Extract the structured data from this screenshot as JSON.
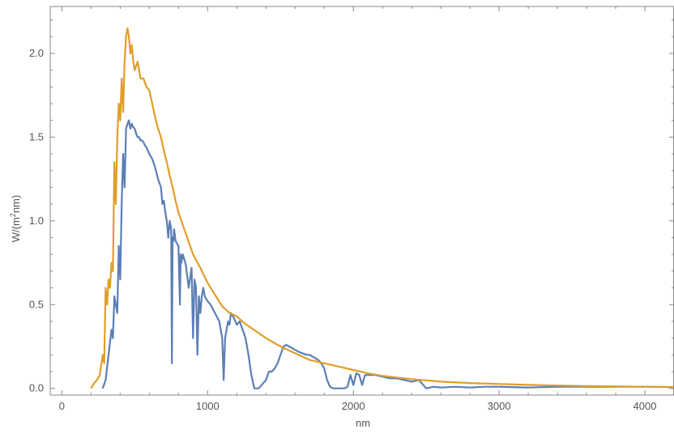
{
  "chart_data": {
    "type": "line",
    "title": "",
    "xlabel": "nm",
    "ylabel_main": "W/(m",
    "ylabel_sup": "2",
    "ylabel_tail": "nm)",
    "xlim": [
      -80,
      4200
    ],
    "ylim": [
      -0.04,
      2.28
    ],
    "x_ticks": [
      0,
      1000,
      2000,
      3000,
      4000
    ],
    "x_tick_labels": [
      "0",
      "1000",
      "2000",
      "3000",
      "4000"
    ],
    "y_ticks": [
      0.0,
      0.5,
      1.0,
      1.5,
      2.0
    ],
    "y_tick_labels": [
      "0.0",
      "0.5",
      "1.0",
      "1.5",
      "2.0"
    ],
    "grid": false,
    "series": [
      {
        "color": "#5b7fb5",
        "x": [
          280,
          300,
          320,
          340,
          350,
          360,
          370,
          380,
          390,
          400,
          410,
          420,
          430,
          440,
          450,
          460,
          470,
          480,
          490,
          500,
          510,
          520,
          530,
          540,
          550,
          560,
          570,
          580,
          590,
          600,
          620,
          640,
          660,
          680,
          690,
          700,
          710,
          720,
          730,
          740,
          750,
          755,
          760,
          765,
          770,
          780,
          800,
          810,
          815,
          820,
          830,
          850,
          870,
          890,
          900,
          910,
          920,
          930,
          940,
          950,
          960,
          970,
          980,
          1000,
          1020,
          1050,
          1080,
          1100,
          1110,
          1120,
          1130,
          1140,
          1150,
          1160,
          1180,
          1200,
          1220,
          1240,
          1260,
          1280,
          1300,
          1320,
          1340,
          1350,
          1360,
          1380,
          1400,
          1420,
          1440,
          1460,
          1480,
          1500,
          1520,
          1540,
          1560,
          1580,
          1600,
          1620,
          1650,
          1680,
          1700,
          1720,
          1740,
          1760,
          1780,
          1800,
          1820,
          1840,
          1860,
          1880,
          1900,
          1920,
          1940,
          1960,
          1980,
          2000,
          2020,
          2040,
          2060,
          2080,
          2100,
          2150,
          2200,
          2250,
          2300,
          2350,
          2400,
          2450,
          2480,
          2500,
          2550,
          2600,
          2700,
          2800,
          2900,
          3000,
          3200,
          3400,
          3600,
          3800,
          4000,
          4200
        ],
        "y": [
          0.0,
          0.05,
          0.2,
          0.35,
          0.3,
          0.55,
          0.5,
          0.45,
          0.85,
          0.65,
          1.1,
          1.4,
          1.2,
          1.55,
          1.58,
          1.6,
          1.55,
          1.58,
          1.56,
          1.55,
          1.52,
          1.5,
          1.5,
          1.48,
          1.48,
          1.47,
          1.45,
          1.44,
          1.42,
          1.4,
          1.37,
          1.32,
          1.25,
          1.2,
          1.1,
          1.12,
          1.05,
          1.0,
          0.9,
          1.0,
          0.95,
          0.15,
          0.9,
          0.88,
          0.95,
          0.88,
          0.85,
          0.5,
          0.8,
          0.75,
          0.8,
          0.74,
          0.6,
          0.72,
          0.3,
          0.65,
          0.6,
          0.2,
          0.55,
          0.45,
          0.55,
          0.6,
          0.55,
          0.52,
          0.5,
          0.45,
          0.4,
          0.3,
          0.05,
          0.3,
          0.35,
          0.4,
          0.38,
          0.45,
          0.42,
          0.38,
          0.4,
          0.35,
          0.3,
          0.2,
          0.08,
          0.0,
          0.0,
          0.0,
          0.01,
          0.03,
          0.05,
          0.1,
          0.1,
          0.12,
          0.15,
          0.2,
          0.25,
          0.26,
          0.25,
          0.24,
          0.23,
          0.22,
          0.21,
          0.2,
          0.2,
          0.19,
          0.18,
          0.17,
          0.15,
          0.12,
          0.05,
          0.01,
          0.0,
          0.0,
          0.0,
          0.0,
          0.0,
          0.01,
          0.08,
          0.02,
          0.09,
          0.08,
          0.02,
          0.08,
          0.08,
          0.08,
          0.07,
          0.06,
          0.06,
          0.05,
          0.04,
          0.05,
          0.02,
          0.0,
          0.01,
          0.005,
          0.01,
          0.005,
          0.01,
          0.01,
          0.005,
          0.01,
          0.01,
          0.01,
          0.01,
          0.008
        ]
      },
      {
        "color": "#e09e2a",
        "x": [
          200,
          220,
          240,
          260,
          280,
          290,
          300,
          310,
          320,
          330,
          340,
          350,
          360,
          370,
          380,
          390,
          400,
          410,
          420,
          430,
          440,
          450,
          460,
          470,
          480,
          490,
          500,
          520,
          540,
          560,
          580,
          600,
          620,
          640,
          660,
          680,
          700,
          720,
          740,
          760,
          780,
          800,
          820,
          840,
          860,
          880,
          900,
          950,
          1000,
          1050,
          1100,
          1150,
          1200,
          1250,
          1300,
          1350,
          1400,
          1500,
          1600,
          1700,
          1800,
          1900,
          2000,
          2100,
          2200,
          2300,
          2400,
          2500,
          2600,
          2800,
          3000,
          3200,
          3400,
          3600,
          3800,
          4000,
          4200
        ],
        "y": [
          0.0,
          0.03,
          0.05,
          0.08,
          0.2,
          0.15,
          0.6,
          0.5,
          0.65,
          0.6,
          0.75,
          0.7,
          1.35,
          1.1,
          1.5,
          1.7,
          1.6,
          1.85,
          1.65,
          1.95,
          2.1,
          2.15,
          2.1,
          2.0,
          2.05,
          1.95,
          1.9,
          1.95,
          1.85,
          1.85,
          1.8,
          1.78,
          1.7,
          1.62,
          1.55,
          1.5,
          1.42,
          1.35,
          1.27,
          1.2,
          1.12,
          1.05,
          1.0,
          0.95,
          0.9,
          0.85,
          0.8,
          0.72,
          0.63,
          0.56,
          0.49,
          0.45,
          0.43,
          0.39,
          0.36,
          0.33,
          0.3,
          0.25,
          0.21,
          0.17,
          0.15,
          0.13,
          0.11,
          0.09,
          0.075,
          0.065,
          0.055,
          0.048,
          0.04,
          0.032,
          0.026,
          0.021,
          0.017,
          0.014,
          0.012,
          0.01,
          0.008
        ]
      }
    ]
  }
}
